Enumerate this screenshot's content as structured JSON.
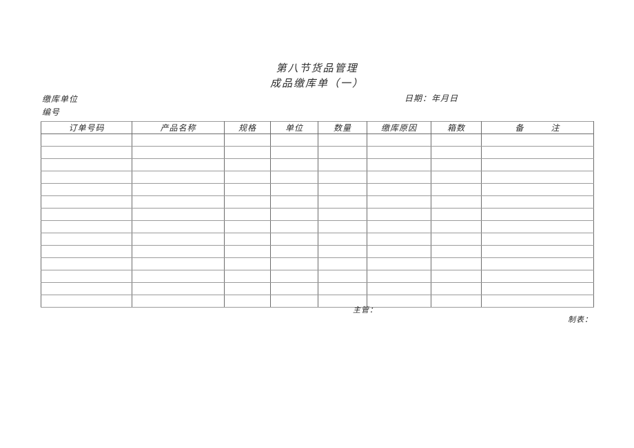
{
  "page": {
    "section_title": "第八节货品管理",
    "form_title": "成品缴库单（一）",
    "unit_label": "缴库单位",
    "date_label": "日期：年月日",
    "number_label": "编号",
    "supervisor_label": "主管：",
    "preparer_label": "制表："
  },
  "table": {
    "headers": [
      "订单号码",
      "产品名称",
      "规格",
      "单位",
      "数量",
      "缴库原因",
      "箱数",
      "备　　　注"
    ],
    "row_count": 14,
    "cells_empty": true
  },
  "colors": {
    "text": "#2b2b2b",
    "grid_vertical_line": "#6a6a6a",
    "grid_horizontal_line": "#9a9a9a",
    "outer_border": "#5a5a5a",
    "background": "#ffffff"
  }
}
